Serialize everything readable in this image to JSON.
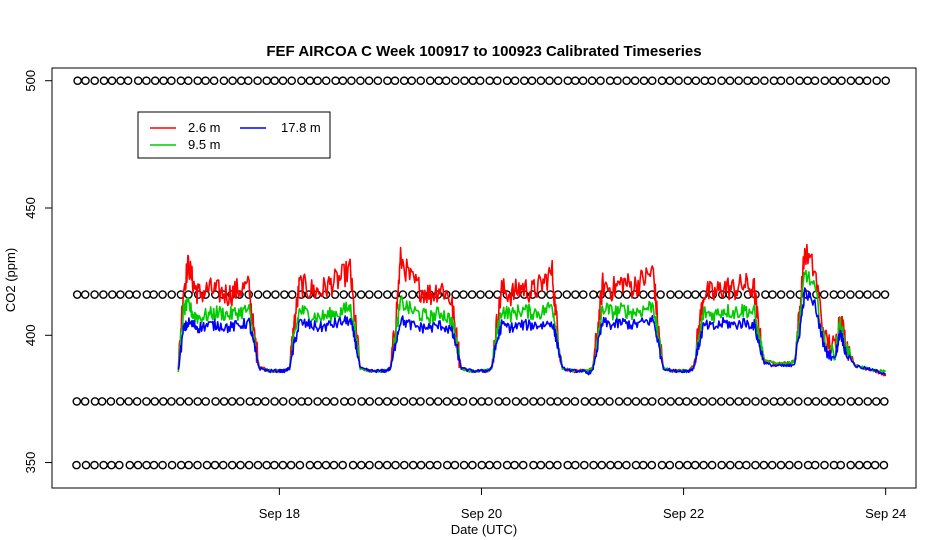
{
  "chart_data": {
    "type": "line",
    "title": "FEF AIRCOA C  Week 100917 to 100923  Calibrated Timeseries",
    "xlabel": "Date (UTC)",
    "ylabel": "CO2 (ppm)",
    "x_unit": "days since Sep 17 00:00 UTC",
    "xlim": [
      -1.25,
      7.3
    ],
    "ylim": [
      340,
      505
    ],
    "x_ticks": [
      {
        "value": 1,
        "label": "Sep 18"
      },
      {
        "value": 3,
        "label": "Sep 20"
      },
      {
        "value": 5,
        "label": "Sep 22"
      },
      {
        "value": 7,
        "label": "Sep 24"
      }
    ],
    "y_ticks": [
      {
        "value": 350,
        "label": "350"
      },
      {
        "value": 400,
        "label": "400"
      },
      {
        "value": 450,
        "label": "450"
      },
      {
        "value": 500,
        "label": "500"
      }
    ],
    "legend": {
      "position": "top-left",
      "entries": [
        {
          "name": "2.6 m",
          "color": "#ff0000"
        },
        {
          "name": "9.5 m",
          "color": "#00cc00"
        },
        {
          "name": "17.8 m",
          "color": "#0000ff"
        }
      ]
    },
    "series": [
      {
        "name": "2.6 m",
        "color": "#ff0000",
        "x": [
          0.0,
          0.05,
          0.1,
          0.15,
          0.2,
          0.3,
          0.4,
          0.5,
          0.6,
          0.7,
          0.75,
          0.8,
          0.9,
          1.0,
          1.05,
          1.1,
          1.15,
          1.2,
          1.3,
          1.4,
          1.5,
          1.6,
          1.7,
          1.75,
          1.8,
          1.9,
          2.0,
          2.05,
          2.1,
          2.15,
          2.2,
          2.3,
          2.4,
          2.5,
          2.6,
          2.7,
          2.75,
          2.8,
          2.9,
          3.0,
          3.05,
          3.1,
          3.15,
          3.2,
          3.3,
          3.4,
          3.5,
          3.6,
          3.7,
          3.75,
          3.8,
          3.9,
          4.0,
          4.05,
          4.1,
          4.15,
          4.2,
          4.3,
          4.4,
          4.5,
          4.6,
          4.7,
          4.75,
          4.8,
          4.9,
          5.0,
          5.05,
          5.1,
          5.15,
          5.2,
          5.3,
          5.4,
          5.5,
          5.6,
          5.7,
          5.75,
          5.8,
          5.9,
          6.0,
          6.05,
          6.1,
          6.15,
          6.2,
          6.3,
          6.4,
          6.5,
          6.55,
          6.6,
          6.7,
          6.8,
          6.9,
          7.0
        ],
        "values": [
          387,
          418,
          428,
          420,
          416,
          418,
          417,
          416,
          418,
          419,
          400,
          388,
          386,
          386,
          386,
          387,
          405,
          420,
          418,
          417,
          420,
          422,
          426,
          405,
          387,
          386,
          386,
          386,
          387,
          405,
          430,
          422,
          418,
          416,
          419,
          414,
          400,
          387,
          386,
          386,
          386,
          387,
          404,
          418,
          416,
          419,
          417,
          420,
          425,
          403,
          387,
          386,
          386,
          386,
          387,
          402,
          420,
          418,
          421,
          419,
          422,
          425,
          402,
          387,
          386,
          386,
          386,
          388,
          402,
          417,
          416,
          419,
          418,
          420,
          418,
          400,
          390,
          389,
          389,
          389,
          390,
          410,
          433,
          425,
          398,
          395,
          408,
          398,
          388,
          387,
          386,
          384
        ]
      },
      {
        "name": "9.5 m",
        "color": "#00cc00",
        "x": [
          0.0,
          0.05,
          0.1,
          0.15,
          0.2,
          0.3,
          0.4,
          0.5,
          0.6,
          0.7,
          0.75,
          0.8,
          0.9,
          1.0,
          1.05,
          1.1,
          1.15,
          1.2,
          1.3,
          1.4,
          1.5,
          1.6,
          1.7,
          1.75,
          1.8,
          1.9,
          2.0,
          2.05,
          2.1,
          2.15,
          2.2,
          2.3,
          2.4,
          2.5,
          2.6,
          2.7,
          2.75,
          2.8,
          2.9,
          3.0,
          3.05,
          3.1,
          3.15,
          3.2,
          3.3,
          3.4,
          3.5,
          3.6,
          3.7,
          3.75,
          3.8,
          3.9,
          4.0,
          4.05,
          4.1,
          4.15,
          4.2,
          4.3,
          4.4,
          4.5,
          4.6,
          4.7,
          4.75,
          4.8,
          4.9,
          5.0,
          5.05,
          5.1,
          5.15,
          5.2,
          5.3,
          5.4,
          5.5,
          5.6,
          5.7,
          5.75,
          5.8,
          5.9,
          6.0,
          6.05,
          6.1,
          6.15,
          6.2,
          6.3,
          6.4,
          6.5,
          6.55,
          6.6,
          6.7,
          6.8,
          6.9,
          7.0
        ],
        "values": [
          386,
          410,
          412,
          408,
          407,
          408,
          409,
          408,
          409,
          410,
          398,
          387,
          386,
          386,
          386,
          387,
          400,
          410,
          408,
          407,
          408,
          409,
          411,
          402,
          387,
          386,
          386,
          386,
          387,
          400,
          413,
          410,
          408,
          407,
          409,
          406,
          398,
          387,
          386,
          386,
          386,
          387,
          400,
          410,
          408,
          410,
          409,
          409,
          412,
          400,
          387,
          386,
          386,
          386,
          387,
          398,
          411,
          409,
          410,
          409,
          410,
          412,
          399,
          387,
          386,
          386,
          386,
          387,
          398,
          409,
          408,
          410,
          409,
          410,
          409,
          398,
          390,
          389,
          389,
          389,
          390,
          406,
          425,
          418,
          396,
          393,
          405,
          396,
          388,
          387,
          386,
          386
        ]
      },
      {
        "name": "17.8 m",
        "color": "#0000ff",
        "x": [
          0.0,
          0.05,
          0.1,
          0.15,
          0.2,
          0.3,
          0.4,
          0.5,
          0.6,
          0.7,
          0.75,
          0.8,
          0.9,
          1.0,
          1.05,
          1.1,
          1.15,
          1.2,
          1.3,
          1.4,
          1.5,
          1.6,
          1.7,
          1.75,
          1.8,
          1.9,
          2.0,
          2.05,
          2.1,
          2.15,
          2.2,
          2.3,
          2.4,
          2.5,
          2.6,
          2.7,
          2.75,
          2.8,
          2.9,
          3.0,
          3.05,
          3.1,
          3.15,
          3.2,
          3.3,
          3.4,
          3.5,
          3.6,
          3.7,
          3.75,
          3.8,
          3.9,
          4.0,
          4.05,
          4.1,
          4.15,
          4.2,
          4.3,
          4.4,
          4.5,
          4.6,
          4.7,
          4.75,
          4.8,
          4.9,
          5.0,
          5.05,
          5.1,
          5.15,
          5.2,
          5.3,
          5.4,
          5.5,
          5.6,
          5.7,
          5.75,
          5.8,
          5.9,
          6.0,
          6.05,
          6.1,
          6.15,
          6.2,
          6.3,
          6.4,
          6.5,
          6.55,
          6.6,
          6.7,
          6.8,
          6.9,
          7.0
        ],
        "values": [
          386,
          402,
          405,
          404,
          403,
          404,
          404,
          403,
          404,
          405,
          396,
          387,
          386,
          386,
          386,
          387,
          397,
          405,
          404,
          403,
          404,
          405,
          406,
          398,
          387,
          386,
          386,
          386,
          387,
          397,
          406,
          404,
          403,
          403,
          404,
          402,
          396,
          387,
          386,
          386,
          386,
          387,
          397,
          404,
          403,
          404,
          404,
          404,
          405,
          397,
          387,
          386,
          386,
          385,
          386,
          396,
          405,
          404,
          405,
          404,
          405,
          406,
          397,
          387,
          386,
          386,
          386,
          387,
          396,
          404,
          403,
          405,
          404,
          405,
          404,
          396,
          389,
          388,
          388,
          388,
          389,
          402,
          417,
          412,
          394,
          391,
          402,
          394,
          388,
          387,
          386,
          385
        ]
      },
      {
        "name": "calibration points",
        "color": "#000000",
        "style": "open-circle",
        "levels": [
          500,
          416,
          374,
          349
        ],
        "x_start": -1.0,
        "x_end": 7.0,
        "x_step": 0.085
      }
    ]
  }
}
